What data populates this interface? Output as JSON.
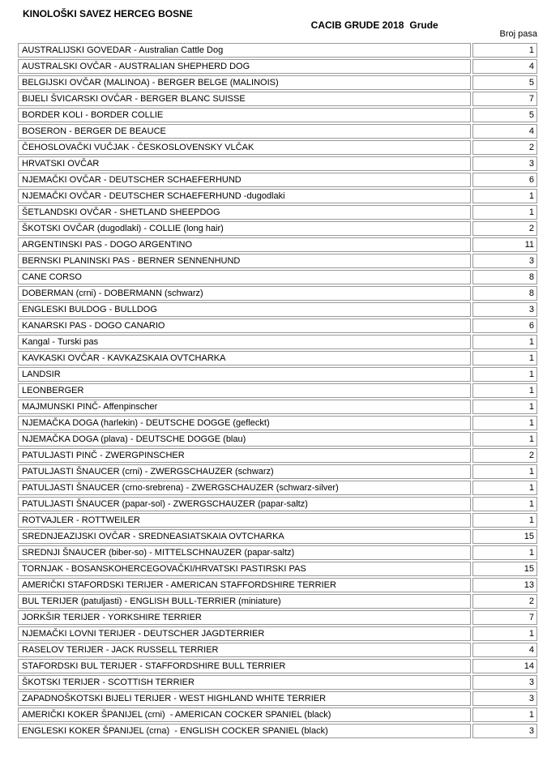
{
  "header": {
    "org_title": "KINOLOŠKI SAVEZ HERCEG BOSNE",
    "event_title": "CACIB GRUDE 2018",
    "event_location": "Grude",
    "count_column_header": "Broj pasa"
  },
  "colors": {
    "background": "#ffffff",
    "text": "#000000",
    "table_border": "#999999"
  },
  "table": {
    "rows": [
      {
        "breed": "AUSTRALIJSKI GOVEDAR - Australian Cattle Dog",
        "count": "1"
      },
      {
        "breed": "AUSTRALSKI OVČAR - AUSTRALIAN SHEPHERD DOG",
        "count": "4"
      },
      {
        "breed": "BELGIJSKI OVČAR (MALINOA) - BERGER BELGE (MALINOIS)",
        "count": "5"
      },
      {
        "breed": "BIJELI ŠVICARSKI OVČAR - BERGER BLANC SUISSE",
        "count": "7"
      },
      {
        "breed": "BORDER KOLI - BORDER COLLIE",
        "count": "5"
      },
      {
        "breed": "BOSERON - BERGER DE BEAUCE",
        "count": "4"
      },
      {
        "breed": "ČEHOSLOVAČKI VUČJAK - ČESKOSLOVENSKY VLČAK",
        "count": "2"
      },
      {
        "breed": "HRVATSKI OVČAR",
        "count": "3"
      },
      {
        "breed": "NJEMAČKI OVČAR - DEUTSCHER SCHAEFERHUND",
        "count": "6"
      },
      {
        "breed": "NJEMAČKI OVČAR - DEUTSCHER SCHAEFERHUND -dugodlaki",
        "count": "1"
      },
      {
        "breed": "ŠETLANDSKI OVČAR - SHETLAND SHEEPDOG",
        "count": "1"
      },
      {
        "breed": "ŠKOTSKI OVČAR (dugodlaki) - COLLIE (long hair)",
        "count": "2"
      },
      {
        "breed": "ARGENTINSKI PAS - DOGO ARGENTINO",
        "count": "11"
      },
      {
        "breed": "BERNSKI PLANINSKI PAS - BERNER SENNENHUND",
        "count": "3"
      },
      {
        "breed": "CANE CORSO",
        "count": "8"
      },
      {
        "breed": "DOBERMAN (crni) - DOBERMANN (schwarz)",
        "count": "8"
      },
      {
        "breed": "ENGLESKI BULDOG - BULLDOG",
        "count": "3"
      },
      {
        "breed": "KANARSKI PAS - DOGO CANARIO",
        "count": "6"
      },
      {
        "breed": "Kangal - Turski pas",
        "count": "1"
      },
      {
        "breed": "KAVKASKI OVČAR - KAVKAZSKAIA OVTCHARKA",
        "count": "1"
      },
      {
        "breed": "LANDSIR",
        "count": "1"
      },
      {
        "breed": "LEONBERGER",
        "count": "1"
      },
      {
        "breed": "MAJMUNSKI PINČ- Affenpinscher",
        "count": "1"
      },
      {
        "breed": "NJEMAČKA DOGA (harlekin) - DEUTSCHE DOGGE (gefleckt)",
        "count": "1"
      },
      {
        "breed": "NJEMAČKA DOGA (plava) - DEUTSCHE DOGGE (blau)",
        "count": "1"
      },
      {
        "breed": "PATULJASTI PINČ - ZWERGPINSCHER",
        "count": "2"
      },
      {
        "breed": "PATULJASTI ŠNAUCER (crni) - ZWERGSCHAUZER (schwarz)",
        "count": "1"
      },
      {
        "breed": "PATULJASTI ŠNAUCER (crno-srebrena) - ZWERGSCHAUZER (schwarz-silver)",
        "count": "1"
      },
      {
        "breed": "PATULJASTI ŠNAUCER (papar-sol) - ZWERGSCHAUZER (papar-saltz)",
        "count": "1"
      },
      {
        "breed": "ROTVAJLER - ROTTWEILER",
        "count": "1"
      },
      {
        "breed": "SREDNJEAZIJSKI OVČAR - SREDNEASIATSKAIA OVTCHARKA",
        "count": "15"
      },
      {
        "breed": "SREDNJI ŠNAUCER (biber-so) - MITTELSCHNAUZER (papar-saltz)",
        "count": "1"
      },
      {
        "breed": "TORNJAK - BOSANSKOHERCEGOVAČKI/HRVATSKI PASTIRSKI PAS",
        "count": "15"
      },
      {
        "breed": "AMERIČKI STAFORDSKI TERIJER - AMERICAN STAFFORDSHIRE TERRIER",
        "count": "13"
      },
      {
        "breed": "BUL TERIJER (patuljasti) - ENGLISH BULL-TERRIER (miniature)",
        "count": "2"
      },
      {
        "breed": "JORKŠIR TERIJER - YORKSHIRE TERRIER",
        "count": "7"
      },
      {
        "breed": "NJEMAČKI LOVNI TERIJER - DEUTSCHER JAGDTERRIER",
        "count": "1"
      },
      {
        "breed": "RASELOV TERIJER - JACK RUSSELL TERRIER",
        "count": "4"
      },
      {
        "breed": "STAFORDSKI BUL TERIJER - STAFFORDSHIRE BULL TERRIER",
        "count": "14"
      },
      {
        "breed": "ŠKOTSKI TERIJER - SCOTTISH TERRIER",
        "count": "3"
      },
      {
        "breed": "ZAPADNOŠKOTSKI BIJELI TERIJER - WEST HIGHLAND WHITE TERRIER",
        "count": "3"
      },
      {
        "breed": "AMERIČKI KOKER ŠPANIJEL (crni)  - AMERICAN COCKER SPANIEL (black)",
        "count": "1"
      },
      {
        "breed": "ENGLESKI KOKER ŠPANIJEL (crna)  - ENGLISH COCKER SPANIEL (black)",
        "count": "3"
      }
    ]
  }
}
